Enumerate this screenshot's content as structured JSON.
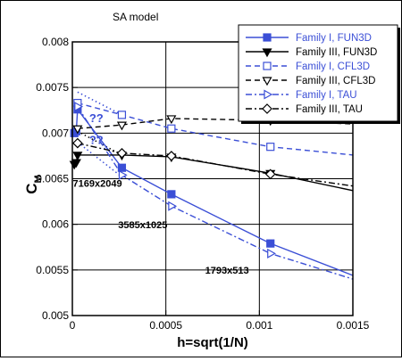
{
  "chart_data": {
    "type": "line",
    "title": "SA model",
    "xlabel": "h=sqrt(1/N)",
    "ylabel": "C",
    "ylabel_sub": "M",
    "xlim": [
      0,
      0.0015
    ],
    "ylim": [
      0.005,
      0.008
    ],
    "xticks": [
      0,
      0.0005,
      0.001,
      0.0015
    ],
    "xtick_labels": [
      "0",
      "0.0005",
      "0.001",
      "0.0015"
    ],
    "yticks": [
      0.005,
      0.0055,
      0.006,
      0.0065,
      0.007,
      0.0075,
      0.008
    ],
    "ytick_labels": [
      "0.005",
      "0.0055",
      "0.006",
      "0.0065",
      "0.007",
      "0.0075",
      "0.008"
    ],
    "grid": true,
    "legend_position": "top-right",
    "series": [
      {
        "name": "Family I, FUN3D",
        "color": "#3b4fd6",
        "dash": "solid",
        "marker": "square-filled",
        "x": [
          1.05e-05,
          2.09e-05,
          2.79e-05,
          0.0002648,
          0.0005296,
          0.0010592,
          0.0015
        ],
        "y": [
          0.007,
          0.00702,
          0.00726,
          0.00662,
          0.00633,
          0.00579,
          0.00544
        ]
      },
      {
        "name": "Family III, FUN3D",
        "color": "#000000",
        "dash": "solid",
        "marker": "triangle-down-filled",
        "x": [
          1.05e-05,
          2.09e-05,
          2.79e-05,
          0.0002648,
          0.0005296,
          0.0010592,
          0.0015
        ],
        "y": [
          0.00666,
          0.00668,
          0.00676,
          0.00676,
          0.00674,
          0.00656,
          0.00637
        ]
      },
      {
        "name": "Family I, CFL3D",
        "color": "#3b4fd6",
        "dash": "dashed",
        "marker": "square-open",
        "x": [
          2.79e-05,
          0.0002648,
          0.0005296,
          0.0010592,
          0.0015
        ],
        "y": [
          0.00733,
          0.0072,
          0.00705,
          0.00685,
          0.00676
        ]
      },
      {
        "name": "Family III, CFL3D",
        "color": "#000000",
        "dash": "dashed",
        "marker": "triangle-down-open",
        "x": [
          2.79e-05,
          0.0002648,
          0.0005296,
          0.0010592,
          0.0015
        ],
        "y": [
          0.00705,
          0.00709,
          0.00716,
          0.00714,
          0.0071
        ]
      },
      {
        "name": "Family I, TAU",
        "color": "#3b4fd6",
        "dash": "dashdot",
        "marker": "triangle-right-open",
        "x": [
          2.79e-05,
          0.0002648,
          0.0005296,
          0.0010592,
          0.0015
        ],
        "y": [
          0.00729,
          0.00654,
          0.0062,
          0.00568,
          0.0054
        ]
      },
      {
        "name": "Family III, TAU",
        "color": "#000000",
        "dash": "dashdot",
        "marker": "diamond-open",
        "x": [
          2.79e-05,
          0.0002648,
          0.0005296,
          0.0010592,
          0.0015
        ],
        "y": [
          0.00689,
          0.00678,
          0.00675,
          0.00655,
          0.00642
        ]
      }
    ],
    "connectors": [
      {
        "color": "#3b4fd6",
        "x": [
          2.79e-05,
          0.0002648
        ],
        "y": [
          0.00745,
          0.0072
        ]
      },
      {
        "color": "#3b4fd6",
        "x": [
          2.79e-05,
          0.0002648
        ],
        "y": [
          0.0069,
          0.00652
        ]
      },
      {
        "color": "#000000",
        "x": [
          2.79e-05,
          0.0002648
        ],
        "y": [
          0.00702,
          0.00676
        ]
      }
    ],
    "annotations": [
      {
        "text": "??",
        "color": "#3b4fd6",
        "x": 9e-05,
        "y": 0.00712
      },
      {
        "text": "??",
        "color": "#3b4fd6",
        "x": 9e-05,
        "y": 0.00688
      },
      {
        "text": "7169x2049",
        "color": "#000000",
        "x": 2.5e-06,
        "y": 0.00641
      },
      {
        "text": "3585x1025",
        "color": "#000000",
        "x": 0.000245,
        "y": 0.00596
      },
      {
        "text": "1793x513",
        "color": "#000000",
        "x": 0.00071,
        "y": 0.00546
      }
    ]
  }
}
